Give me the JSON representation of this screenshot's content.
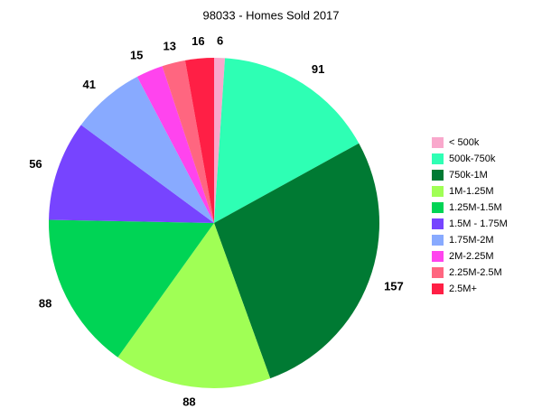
{
  "chart_data": {
    "type": "pie",
    "title": "98033 - Homes Sold 2017",
    "categories": [
      "< 500k",
      "500k-750k",
      "750k-1M",
      "1M-1.25M",
      "1.25M-1.5M",
      "1.5M - 1.75M",
      "1.75M-2M",
      "2M-2.25M",
      "2.25M-2.5M",
      "2.5M+"
    ],
    "values": [
      6,
      91,
      157,
      88,
      88,
      56,
      41,
      15,
      13,
      16
    ],
    "colors": [
      "#f9a8cc",
      "#2effb4",
      "#007a33",
      "#a0ff55",
      "#00d455",
      "#7744ff",
      "#88aaff",
      "#ff44ee",
      "#ff6680",
      "#ff1f45"
    ],
    "legend": "right"
  }
}
